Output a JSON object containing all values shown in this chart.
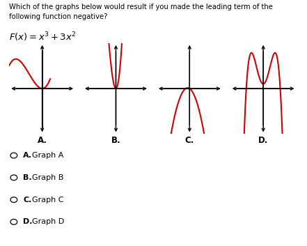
{
  "question_text": "Which of the graphs below would result if you made the leading term of the\nfollowing function negative?",
  "formula_display": "F(x) = x^3 + 3x^2",
  "graph_labels": [
    "A.",
    "B.",
    "C.",
    "D."
  ],
  "answer_choices": [
    "A.",
    "Graph A",
    "B.",
    "Graph B",
    "C.",
    "Graph C",
    "D.",
    "Graph D"
  ],
  "curve_color": "#cc0000",
  "bg_color": "#ffffff",
  "text_color": "#000000"
}
